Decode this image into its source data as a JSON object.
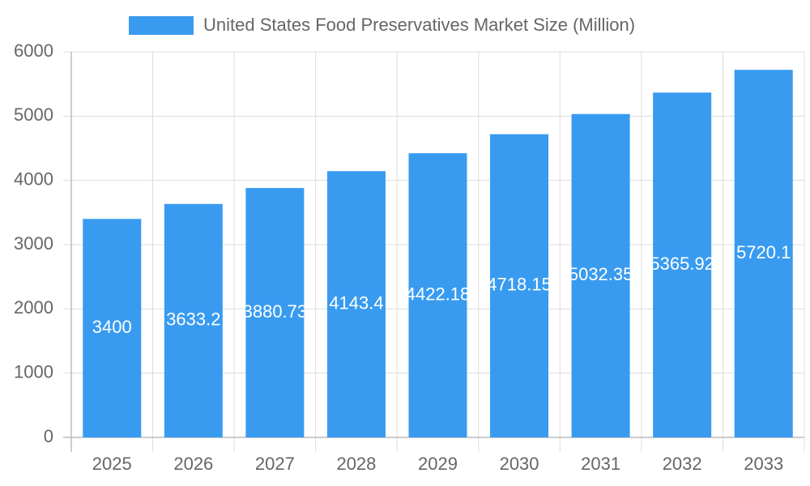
{
  "chart_data": {
    "type": "bar",
    "categories": [
      "2025",
      "2026",
      "2027",
      "2028",
      "2029",
      "2030",
      "2031",
      "2032",
      "2033"
    ],
    "series": [
      {
        "name": "United States Food Preservatives Market Size (Million)",
        "color": "#389bf0",
        "values": [
          3400,
          3633.2,
          3880.73,
          4143.4,
          4422.18,
          4718.15,
          5032.35,
          5365.92,
          5720.1
        ]
      }
    ],
    "ylim": [
      0,
      6000
    ],
    "yticks": [
      0,
      1000,
      2000,
      3000,
      4000,
      5000,
      6000
    ],
    "grid": true,
    "legend": "top"
  }
}
